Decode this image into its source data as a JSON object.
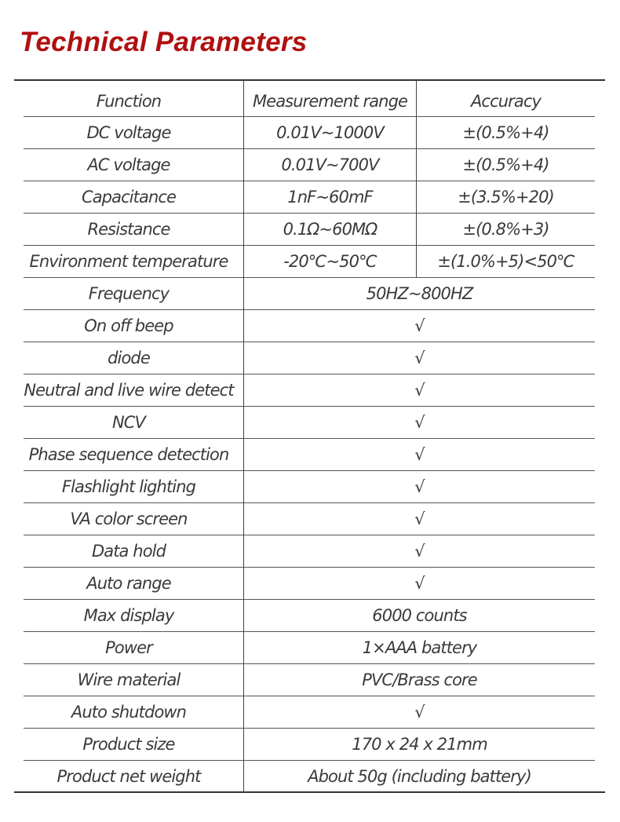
{
  "title": "Technical Parameters",
  "table": {
    "headers": [
      "Function",
      "Measurement range",
      "Accuracy"
    ],
    "rows": [
      {
        "function": "DC voltage",
        "range": "0.01V~1000V",
        "accuracy": "±(0.5%+4)"
      },
      {
        "function": "AC voltage",
        "range": "0.01V~700V",
        "accuracy": "±(0.5%+4)"
      },
      {
        "function": "Capacitance",
        "range": "1nF~60mF",
        "accuracy": "±(3.5%+20)"
      },
      {
        "function": "Resistance",
        "range": "0.1Ω~60MΩ",
        "accuracy": "±(0.8%+3)"
      },
      {
        "function": "Environment temperature",
        "range": "-20℃~50℃",
        "accuracy": "±(1.0%+5)<50℃"
      },
      {
        "function": "Frequency",
        "value": "50HZ~800HZ"
      },
      {
        "function": "On off beep",
        "value": "√"
      },
      {
        "function": "diode",
        "value": "√"
      },
      {
        "function": "Neutral and live wire detect",
        "value": "√"
      },
      {
        "function": "NCV",
        "value": "√"
      },
      {
        "function": "Phase sequence detection",
        "value": "√"
      },
      {
        "function": "Flashlight lighting",
        "value": "√"
      },
      {
        "function": "VA color screen",
        "value": "√"
      },
      {
        "function": "Data hold",
        "value": "√"
      },
      {
        "function": "Auto range",
        "value": "√"
      },
      {
        "function": "Max display",
        "value": "6000 counts"
      },
      {
        "function": "Power",
        "value": "1×AAA battery"
      },
      {
        "function": "Wire material",
        "value": "PVC/Brass core"
      },
      {
        "function": "Auto shutdown",
        "value": "√"
      },
      {
        "function": "Product size",
        "value": "170 x 24 x 21mm"
      },
      {
        "function": "Product net weight",
        "value": "About 50g (including battery)"
      }
    ]
  },
  "colors": {
    "title": "#b01010",
    "text": "#3a3a3a",
    "rules": "#333333"
  }
}
